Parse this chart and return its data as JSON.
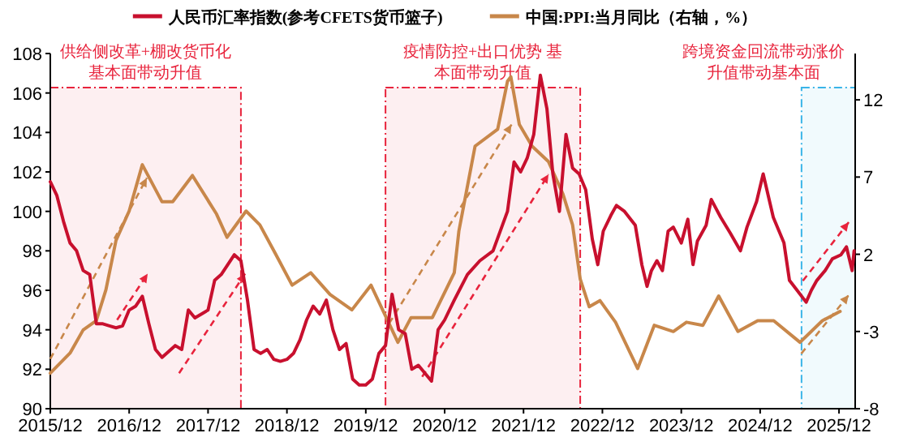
{
  "chart_data": {
    "type": "line",
    "legend": "top",
    "xlim": [
      "2015-12",
      "2026-02-15"
    ],
    "xticks": [
      {
        "value": "2015-12",
        "label": "2015/12"
      },
      {
        "value": "2016-12",
        "label": "2016/12"
      },
      {
        "value": "2017-12",
        "label": "2017/12"
      },
      {
        "value": "2018-12",
        "label": "2018/12"
      },
      {
        "value": "2019-12",
        "label": "2019/12"
      },
      {
        "value": "2020-12",
        "label": "2020/12"
      },
      {
        "value": "2021-12",
        "label": "2021/12"
      },
      {
        "value": "2022-12",
        "label": "2022/12"
      },
      {
        "value": "2023-12",
        "label": "2023/12"
      },
      {
        "value": "2024-12",
        "label": "2024/12"
      },
      {
        "value": "2025-12",
        "label": "2025/12"
      }
    ],
    "ylim": [
      90,
      108
    ],
    "yticks": [
      90,
      92,
      94,
      96,
      98,
      100,
      102,
      104,
      106,
      108
    ],
    "y2lim": [
      -8,
      15
    ],
    "y2ticks": [
      -8,
      -3,
      2,
      7,
      12
    ],
    "bands": [
      {
        "axis": "x",
        "from": "2015-12",
        "to": "2018-05",
        "label": "供给侧改革+棚改货币化基本面带动升值",
        "color": "#e8233c"
      },
      {
        "axis": "x",
        "from": "2020-03",
        "to": "2022-08-20",
        "label": "疫情防控+出口优势 基本面带动升值",
        "color": "#e8233c"
      },
      {
        "axis": "x",
        "from": "2025-06-10",
        "to": "2026-02-15",
        "label": "跨境资金回流带动涨价升值带动基本面",
        "color": "#3ab4e8"
      }
    ],
    "series": [
      {
        "name": "人民币汇率指数(参考CFETS货币篮子)",
        "color": "#c8102e",
        "x": [
          "2015-12",
          "2016-01",
          "2016-02",
          "2016-03",
          "2016-04",
          "2016-05",
          "2016-06",
          "2016-07",
          "2016-08",
          "2016-09",
          "2016-10",
          "2016-11",
          "2016-12",
          "2017-01",
          "2017-02",
          "2017-03",
          "2017-04",
          "2017-05",
          "2017-06",
          "2017-07",
          "2017-08",
          "2017-09",
          "2017-10",
          "2017-11",
          "2017-12",
          "2018-01",
          "2018-02",
          "2018-03",
          "2018-04",
          "2018-05",
          "2018-06",
          "2018-07",
          "2018-08",
          "2018-09",
          "2018-10",
          "2018-11",
          "2018-12",
          "2019-01",
          "2019-02",
          "2019-03",
          "2019-04",
          "2019-05",
          "2019-06",
          "2019-07",
          "2019-08",
          "2019-09",
          "2019-10",
          "2019-11",
          "2019-12",
          "2020-01",
          "2020-02",
          "2020-03",
          "2020-04",
          "2020-05",
          "2020-06",
          "2020-07",
          "2020-08",
          "2020-09",
          "2020-10",
          "2020-11",
          "2020-12",
          "2021-01-15",
          "2021-03-15",
          "2021-05-12",
          "2021-07-12",
          "2021-09-18",
          "2021-10-18",
          "2021-11-18",
          "2021-12-18",
          "2022-01-18",
          "2022-02-18",
          "2022-03-18",
          "2022-04-15",
          "2022-05-15",
          "2022-06-15",
          "2022-07-15",
          "2022-08-15",
          "2022-09-15",
          "2022-10-15",
          "2022-11-10",
          "2022-12-05",
          "2023-01-10",
          "2023-02-05",
          "2023-03-12",
          "2023-05-01",
          "2023-06-01",
          "2023-06-25",
          "2023-07-15",
          "2023-08-10",
          "2023-09-05",
          "2023-10-01",
          "2023-10-25",
          "2023-12-01",
          "2024-01-01",
          "2024-01-25",
          "2024-02-15",
          "2024-03-25",
          "2024-04-18",
          "2024-06-01",
          "2024-07-15",
          "2024-09-01",
          "2024-10-01",
          "2024-11-15",
          "2024-12-15",
          "2025-02-01",
          "2025-03-20",
          "2025-04-15",
          "2025-05-20",
          "2025-07-01",
          "2025-07-25",
          "2025-08-20",
          "2025-09-28",
          "2025-11-01",
          "2025-12-10",
          "2026-01-05",
          "2026-02-01",
          "2026-02-10"
        ],
        "values": [
          101.5,
          100.8,
          99.5,
          98.4,
          98.0,
          97.0,
          96.8,
          94.3,
          94.3,
          94.2,
          94.1,
          94.2,
          95.0,
          95.2,
          95.7,
          94.3,
          93.0,
          92.6,
          92.9,
          93.2,
          93.0,
          95.0,
          94.6,
          94.8,
          95.0,
          96.5,
          96.8,
          97.3,
          97.8,
          97.5,
          95.5,
          93.0,
          92.8,
          93.0,
          92.5,
          92.4,
          92.5,
          92.8,
          93.5,
          94.5,
          95.2,
          94.8,
          95.5,
          94.0,
          93.0,
          93.3,
          91.5,
          91.2,
          91.2,
          91.5,
          92.8,
          93.2,
          95.8,
          94.0,
          93.8,
          92.0,
          92.2,
          91.8,
          91.4,
          94.0,
          94.5,
          95.5,
          96.8,
          97.5,
          98.0,
          100.0,
          102.5,
          102.0,
          102.7,
          103.9,
          106.9,
          105.2,
          101.9,
          100.0,
          103.9,
          102.2,
          101.9,
          101.1,
          98.6,
          97.3,
          99.0,
          99.8,
          100.3,
          100.0,
          99.3,
          97.3,
          96.2,
          97.0,
          97.5,
          97.0,
          99.0,
          99.2,
          98.4,
          99.6,
          97.3,
          98.5,
          99.3,
          100.6,
          99.7,
          98.9,
          98.0,
          99.2,
          100.5,
          101.9,
          99.7,
          98.4,
          96.5,
          96.0,
          95.4,
          96.0,
          96.5,
          97.0,
          97.6,
          97.8,
          98.2,
          97.0,
          98.0
        ]
      },
      {
        "name": "中国:PPI:当月同比（右轴，%）",
        "color": "#c8874a",
        "axis": "y2",
        "x": [
          "2015-12",
          "2016-03",
          "2016-05",
          "2016-07",
          "2016-08-15",
          "2016-10",
          "2016-12",
          "2017-02",
          "2017-05",
          "2017-06-20",
          "2017-09-20",
          "2018-01-10",
          "2018-02-28",
          "2018-05-25",
          "2018-07-28",
          "2018-10-10",
          "2018-12-25",
          "2019-03-20",
          "2019-06-18",
          "2019-09-28",
          "2019-12-25",
          "2020-04-28",
          "2020-06-28",
          "2020-10-05",
          "2021-01-15",
          "2021-02-06",
          "2021-04-20",
          "2021-08-03",
          "2021-09-18",
          "2021-10-03",
          "2021-11-12",
          "2022-01-10",
          "2022-03-25",
          "2022-06-01",
          "2022-07-15",
          "2022-08-20",
          "2022-10-01",
          "2022-11-20",
          "2023-02-01",
          "2023-05-12",
          "2023-07-28",
          "2023-10-25",
          "2023-12-25",
          "2024-03-10",
          "2024-05-22",
          "2024-08-20",
          "2024-11-20",
          "2025-02-03",
          "2025-06-03",
          "2025-09-15",
          "2025-12-06"
        ],
        "values": [
          -5.7,
          -4.4,
          -2.9,
          -2.3,
          -0.3,
          2.9,
          4.8,
          7.8,
          5.4,
          5.4,
          7.1,
          4.6,
          3.1,
          4.8,
          3.9,
          2.0,
          0.0,
          0.8,
          -0.6,
          -1.6,
          0.0,
          -3.7,
          -2.1,
          -2.1,
          0.8,
          3.5,
          9.0,
          10.1,
          13.2,
          13.5,
          10.4,
          9.0,
          8.0,
          5.9,
          3.9,
          0.4,
          -1.4,
          -1.0,
          -2.4,
          -5.4,
          -2.6,
          -3.0,
          -2.4,
          -2.6,
          -0.7,
          -3.0,
          -2.3,
          -2.3,
          -3.7,
          -2.3,
          -1.7
        ]
      }
    ]
  }
}
